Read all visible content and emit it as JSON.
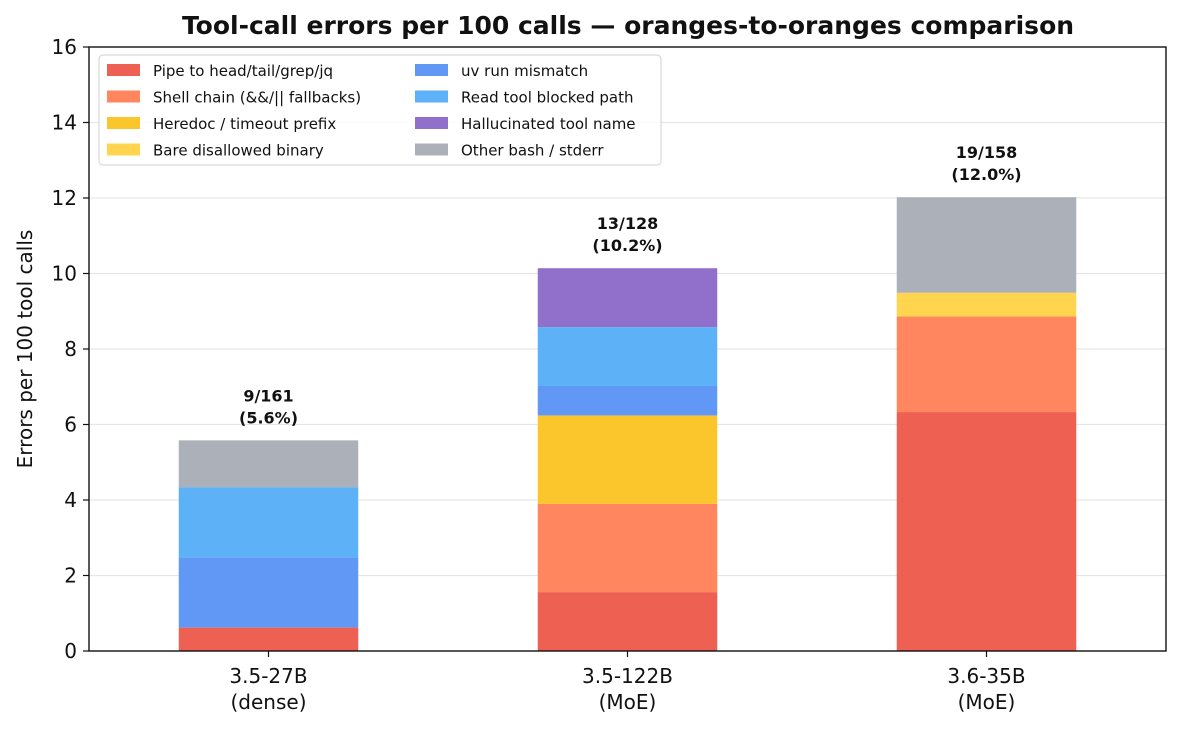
{
  "chart_data": {
    "type": "bar",
    "stacked": true,
    "title": "Tool-call errors per 100 calls — oranges-to-oranges comparison",
    "xlabel": "",
    "ylabel": "Errors per 100 tool calls",
    "ylim": [
      0,
      16
    ],
    "yticks": [
      0,
      2,
      4,
      6,
      8,
      10,
      12,
      14,
      16
    ],
    "grid": "y",
    "legend_position": "top-left",
    "categories": [
      {
        "line1": "3.5-27B",
        "line2": "(dense)"
      },
      {
        "line1": "3.5-122B",
        "line2": "(MoE)"
      },
      {
        "line1": "3.6-35B",
        "line2": "(MoE)"
      }
    ],
    "totals": [
      {
        "line1": "9/161",
        "line2": "(5.6%)"
      },
      {
        "line1": "13/128",
        "line2": "(10.2%)"
      },
      {
        "line1": "19/158",
        "line2": "(12.0%)"
      }
    ],
    "series": [
      {
        "name": "Pipe to head/tail/grep/jq",
        "color": "#ee6052",
        "values": [
          0.62,
          1.56,
          6.33
        ]
      },
      {
        "name": "Shell chain (&&/|| fallbacks)",
        "color": "#ff865e",
        "values": [
          0,
          2.34,
          2.53
        ]
      },
      {
        "name": "Heredoc / timeout prefix",
        "color": "#fbc52c",
        "values": [
          0,
          2.34,
          0
        ]
      },
      {
        "name": "Bare disallowed binary",
        "color": "#ffd54f",
        "values": [
          0,
          0,
          0.63
        ]
      },
      {
        "name": "uv run mismatch",
        "color": "#6198f5",
        "values": [
          1.86,
          0.78,
          0
        ]
      },
      {
        "name": "Read tool blocked path",
        "color": "#5db2f7",
        "values": [
          1.86,
          1.56,
          0
        ]
      },
      {
        "name": "Hallucinated tool name",
        "color": "#9070cb",
        "values": [
          0,
          1.56,
          0
        ]
      },
      {
        "name": "Other bash / stderr",
        "color": "#acb0b9",
        "values": [
          1.24,
          0,
          2.53
        ]
      }
    ]
  }
}
